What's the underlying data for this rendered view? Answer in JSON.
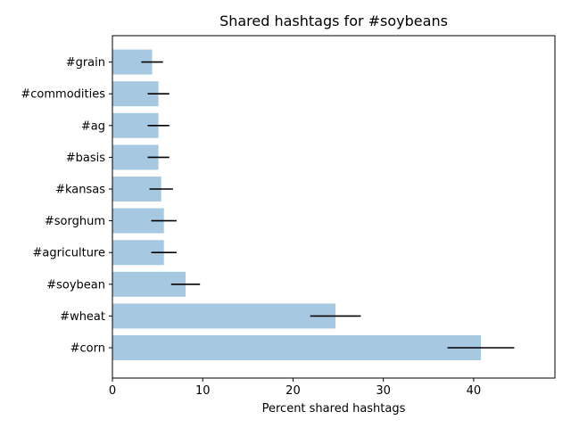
{
  "chart_data": {
    "type": "bar",
    "orientation": "horizontal",
    "title": "Shared hashtags for #soybeans",
    "xlabel": "Percent shared hashtags",
    "ylabel": "",
    "xlim": [
      0,
      49
    ],
    "x_ticks": [
      0,
      10,
      20,
      30,
      40
    ],
    "grid": false,
    "bar_color": "#a6c8e0",
    "error_color": "#000000",
    "categories": [
      "#corn",
      "#wheat",
      "#soybean",
      "#agriculture",
      "#sorghum",
      "#kansas",
      "#basis",
      "#ag",
      "#commodities",
      "#grain"
    ],
    "values": [
      40.8,
      24.7,
      8.1,
      5.7,
      5.7,
      5.4,
      5.1,
      5.1,
      5.1,
      4.4
    ],
    "errors": [
      3.7,
      2.8,
      1.6,
      1.4,
      1.4,
      1.3,
      1.2,
      1.2,
      1.2,
      1.2
    ]
  }
}
